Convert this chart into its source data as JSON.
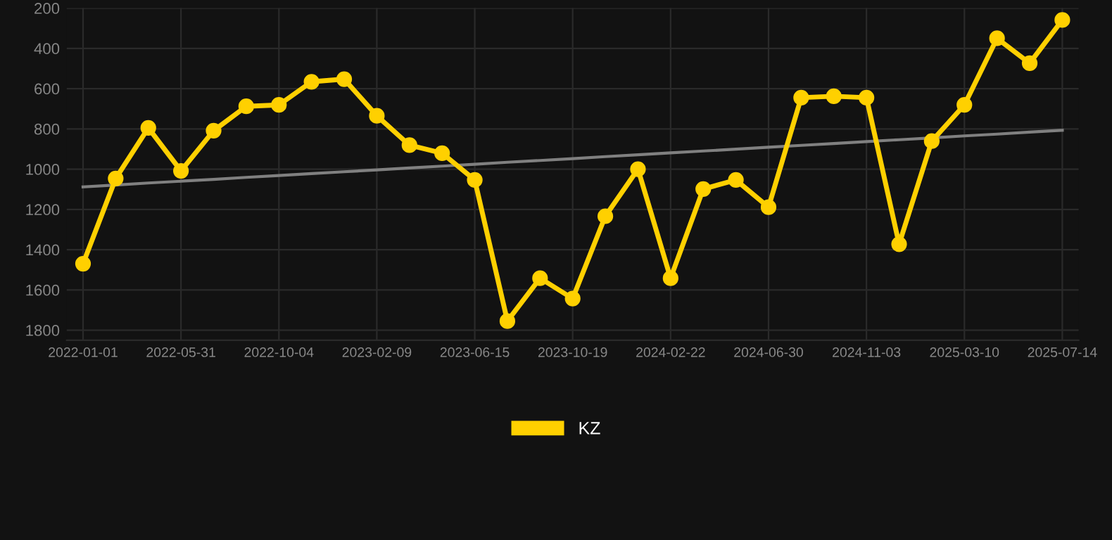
{
  "chart_data": {
    "type": "line",
    "categories": [
      "2022-01-01",
      null,
      null,
      "2022-05-31",
      null,
      null,
      "2022-10-04",
      null,
      null,
      "2023-02-09",
      null,
      null,
      "2023-06-15",
      null,
      null,
      "2023-10-19",
      null,
      null,
      "2024-02-22",
      null,
      null,
      "2024-06-30",
      null,
      null,
      "2024-11-03",
      null,
      null,
      "2025-03-10",
      null,
      null,
      "2025-07-14"
    ],
    "series": [
      {
        "name": "KZ",
        "color": "#ffd000",
        "marker": "circle",
        "values": [
          1470,
          1047,
          795,
          1009,
          809,
          688,
          681,
          566,
          553,
          735,
          881,
          921,
          1054,
          1755,
          1542,
          1643,
          1234,
          1000,
          1542,
          1099,
          1054,
          1189,
          645,
          638,
          645,
          1373,
          861,
          681,
          350,
          474,
          259
        ]
      },
      {
        "type": "line",
        "color": "#808080",
        "marker": "none",
        "values": [
          1088,
          1079,
          1069,
          1060,
          1051,
          1041,
          1032,
          1022,
          1013,
          1004,
          994,
          985,
          976,
          966,
          957,
          948,
          938,
          929,
          919,
          910,
          901,
          891,
          882,
          873,
          863,
          854,
          845,
          835,
          826,
          816,
          807
        ]
      }
    ],
    "ylim": [
      1850,
      200
    ],
    "yticks": [
      200,
      400,
      600,
      800,
      1000,
      1200,
      1400,
      1600,
      1800
    ],
    "grid": true,
    "legend": "bottom",
    "line_style": "solid"
  }
}
